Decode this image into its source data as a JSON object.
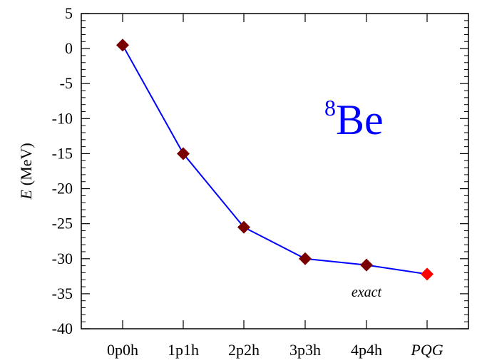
{
  "chart_data": {
    "type": "line",
    "title": "",
    "xlabel": "",
    "ylabel": {
      "symbol": "E",
      "unit": "(MeV)"
    },
    "ylim": [
      -40,
      5
    ],
    "yticks": [
      5,
      0,
      -5,
      -10,
      -15,
      -20,
      -25,
      -30,
      -35,
      -40
    ],
    "categories": [
      "0p0h",
      "1p1h",
      "2p2h",
      "3p3h",
      "4p4h",
      "PQG"
    ],
    "italic_categories": [
      "PQG"
    ],
    "series": [
      {
        "values": [
          0.5,
          -15.0,
          -25.5,
          -30.0,
          -30.9,
          -32.2
        ],
        "line_color": "#0000ff",
        "marker": "diamond",
        "marker_colors": [
          "#7a0000",
          "#7a0000",
          "#7a0000",
          "#7a0000",
          "#7a0000",
          "#ff0000"
        ]
      }
    ],
    "annotations": {
      "nucleus_mass": "8",
      "nucleus_symbol": "Be",
      "exact_label": "exact"
    },
    "grid": false
  }
}
